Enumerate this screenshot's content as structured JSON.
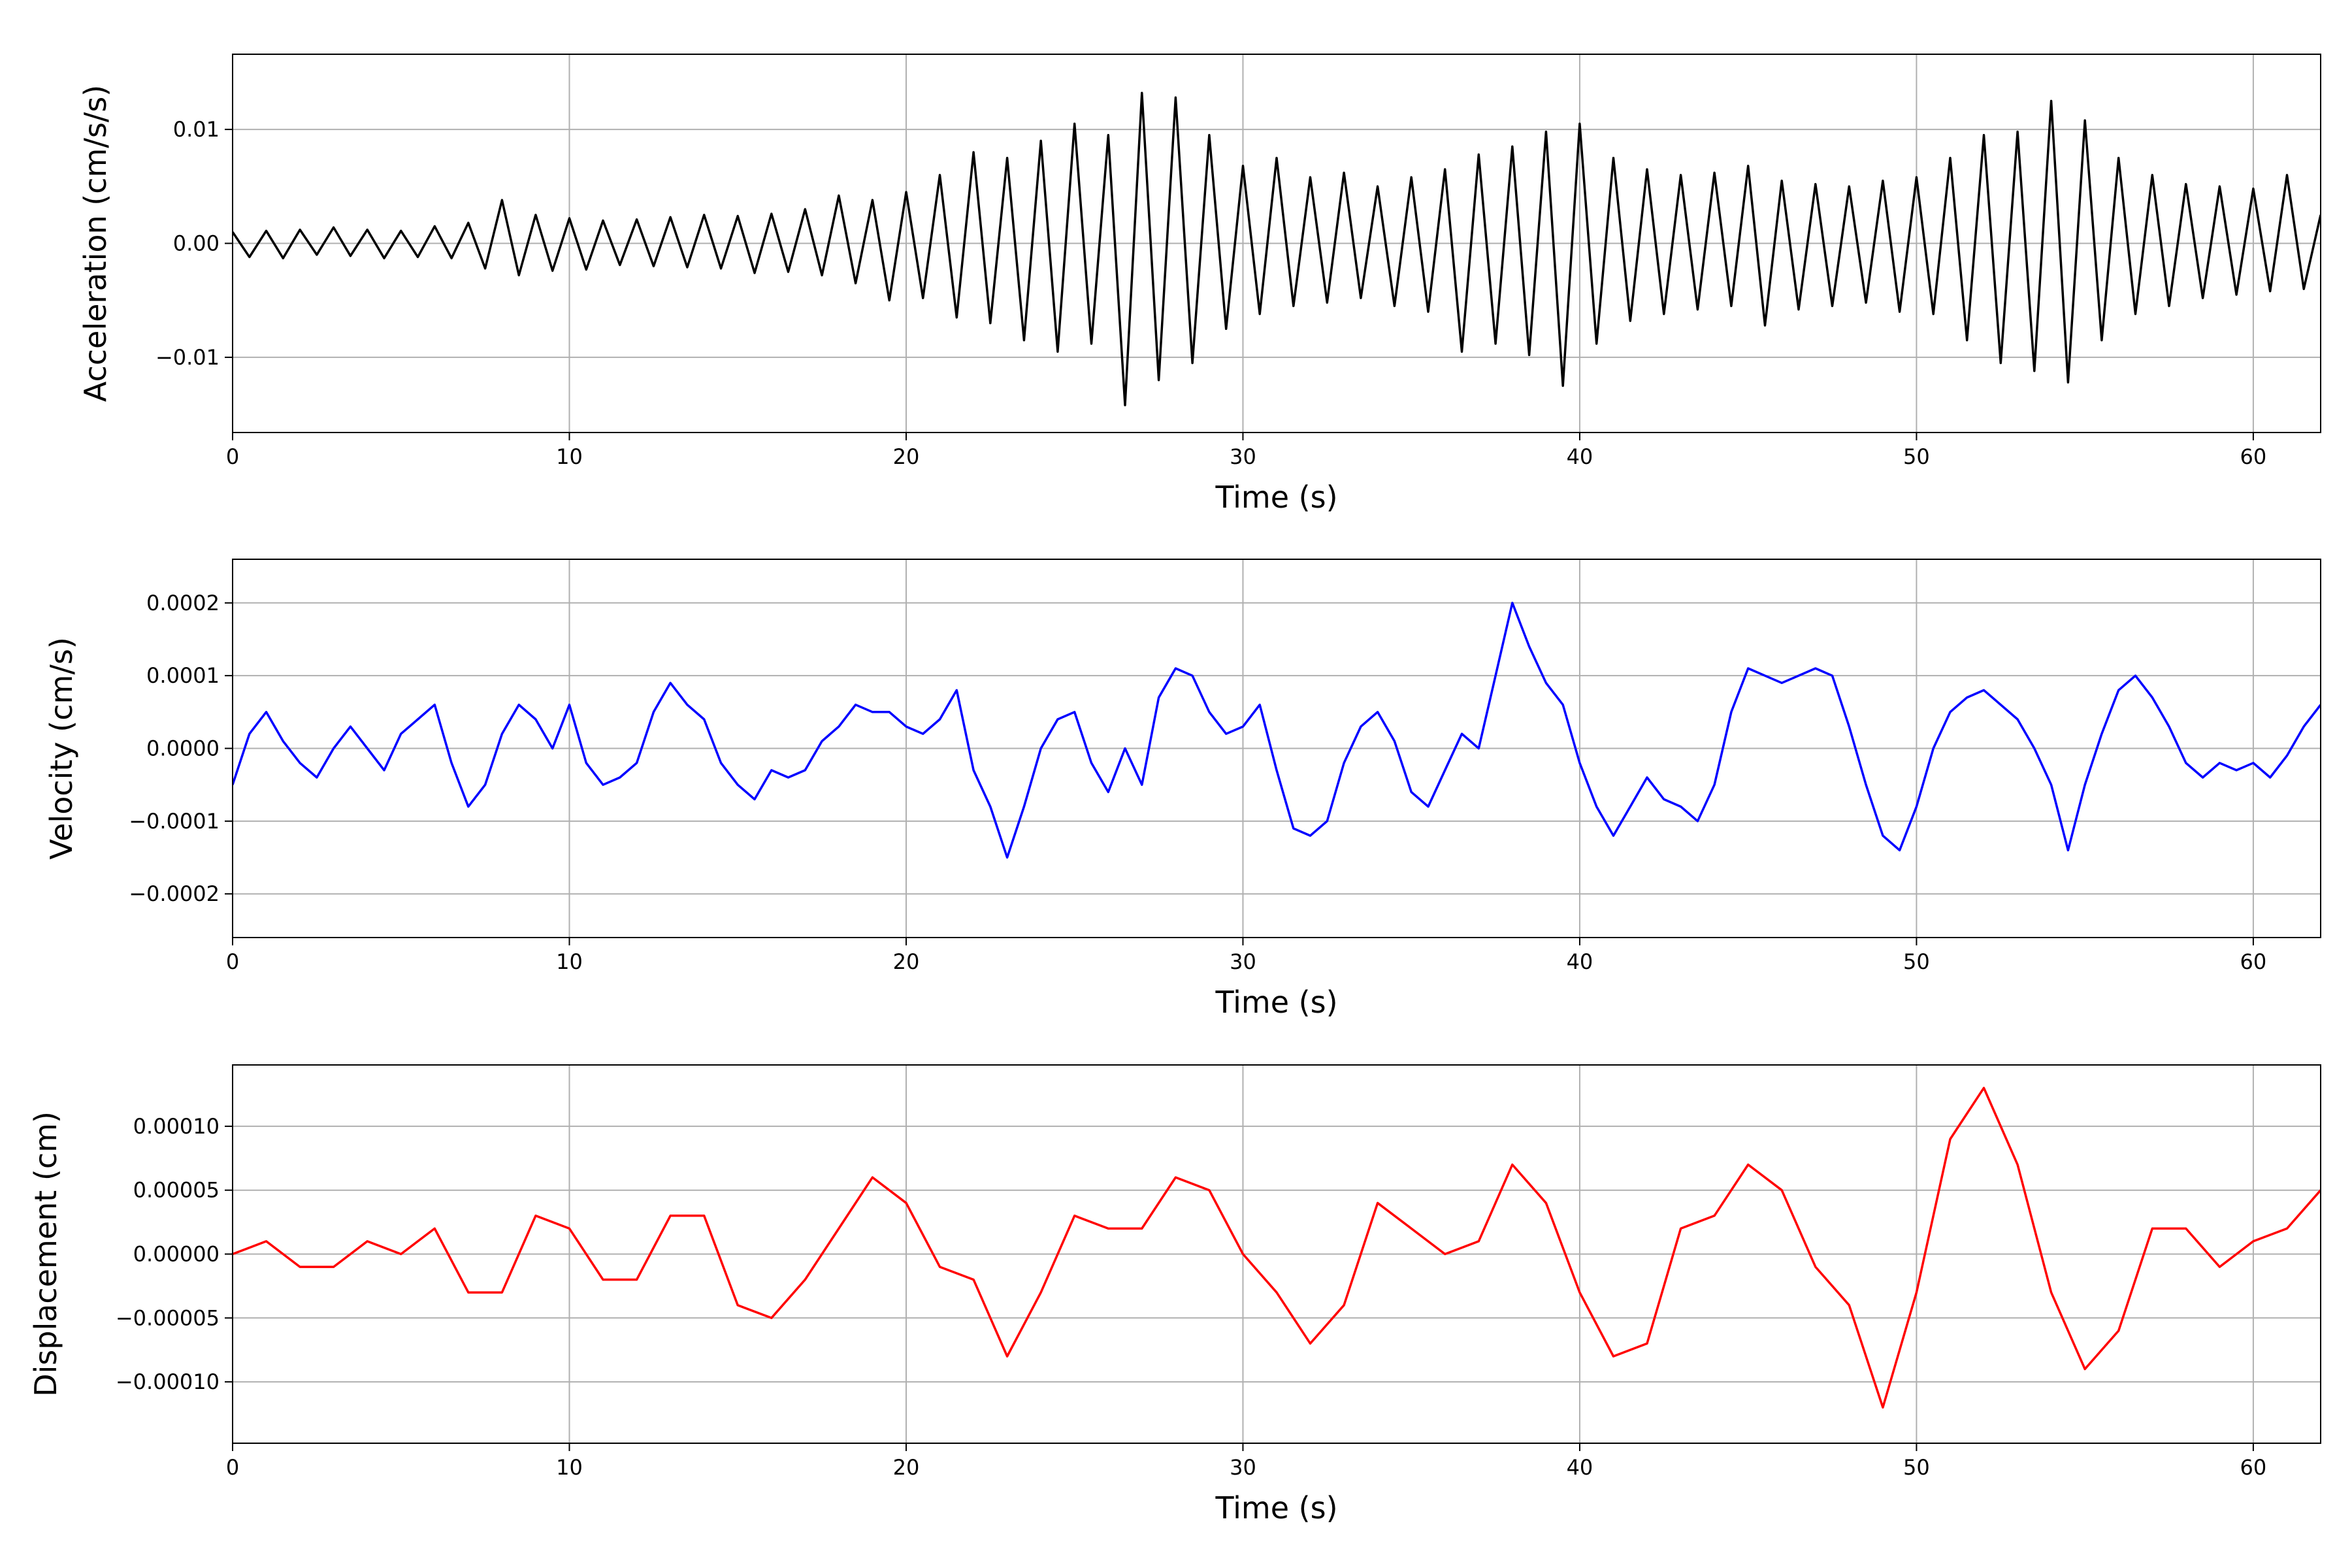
{
  "chart_data": [
    {
      "type": "line",
      "xlabel": "Time (s)",
      "ylabel": "Acceleration (cm/s/s)",
      "color": "#000000",
      "grid": true,
      "xlim": [
        0,
        62
      ],
      "xticks": [
        0,
        10,
        20,
        30,
        40,
        50,
        60
      ],
      "ylim": [
        -0.0166,
        0.0166
      ],
      "yticks": [
        {
          "value": -0.01,
          "label": "−0.01"
        },
        {
          "value": 0,
          "label": "0.00"
        },
        0.01
      ],
      "x": [
        0,
        0.5,
        1,
        1.5,
        2,
        2.5,
        3,
        3.5,
        4,
        4.5,
        5,
        5.5,
        6,
        6.5,
        7,
        7.5,
        8,
        8.5,
        9,
        9.5,
        10,
        10.5,
        11,
        11.5,
        12,
        12.5,
        13,
        13.5,
        14,
        14.5,
        15,
        15.5,
        16,
        16.5,
        17,
        17.5,
        18,
        18.5,
        19,
        19.5,
        20,
        20.5,
        21,
        21.5,
        22,
        22.5,
        23,
        23.5,
        24,
        24.5,
        25,
        25.5,
        26,
        26.5,
        27,
        27.5,
        28,
        28.5,
        29,
        29.5,
        30,
        30.5,
        31,
        31.5,
        32,
        32.5,
        33,
        33.5,
        34,
        34.5,
        35,
        35.5,
        36,
        36.5,
        37,
        37.5,
        38,
        38.5,
        39,
        39.5,
        40,
        40.5,
        41,
        41.5,
        42,
        42.5,
        43,
        43.5,
        44,
        44.5,
        45,
        45.5,
        46,
        46.5,
        47,
        47.5,
        48,
        48.5,
        49,
        49.5,
        50,
        50.5,
        51,
        51.5,
        52,
        52.5,
        53,
        53.5,
        54,
        54.5,
        55,
        55.5,
        56,
        56.5,
        57,
        57.5,
        58,
        58.5,
        59,
        59.5,
        60,
        60.5,
        61,
        61.5,
        62
      ],
      "values": [
        0.001,
        -0.0012,
        0.0011,
        -0.0013,
        0.0012,
        -0.001,
        0.0014,
        -0.0011,
        0.0012,
        -0.0013,
        0.0011,
        -0.0012,
        0.0015,
        -0.0013,
        0.0018,
        -0.0022,
        0.0038,
        -0.0028,
        0.0025,
        -0.0024,
        0.0022,
        -0.0023,
        0.002,
        -0.0019,
        0.0021,
        -0.002,
        0.0023,
        -0.0021,
        0.0025,
        -0.0022,
        0.0024,
        -0.0026,
        0.0026,
        -0.0025,
        0.003,
        -0.0028,
        0.0042,
        -0.0035,
        0.0038,
        -0.005,
        0.0045,
        -0.0048,
        0.006,
        -0.0065,
        0.008,
        -0.007,
        0.0075,
        -0.0085,
        0.009,
        -0.0095,
        0.0105,
        -0.0088,
        0.0095,
        -0.0142,
        0.0132,
        -0.012,
        0.0128,
        -0.0105,
        0.0095,
        -0.0075,
        0.0068,
        -0.0062,
        0.0075,
        -0.0055,
        0.0058,
        -0.0052,
        0.0062,
        -0.0048,
        0.005,
        -0.0055,
        0.0058,
        -0.006,
        0.0065,
        -0.0095,
        0.0078,
        -0.0088,
        0.0085,
        -0.0098,
        0.0098,
        -0.0125,
        0.0105,
        -0.0088,
        0.0075,
        -0.0068,
        0.0065,
        -0.0062,
        0.006,
        -0.0058,
        0.0062,
        -0.0055,
        0.0068,
        -0.0072,
        0.0055,
        -0.0058,
        0.0052,
        -0.0055,
        0.005,
        -0.0052,
        0.0055,
        -0.006,
        0.0058,
        -0.0062,
        0.0075,
        -0.0085,
        0.0095,
        -0.0105,
        0.0098,
        -0.0112,
        0.0125,
        -0.0122,
        0.0108,
        -0.0085,
        0.0075,
        -0.0062,
        0.006,
        -0.0055,
        0.0052,
        -0.0048,
        0.005,
        -0.0045,
        0.0048,
        -0.0042,
        0.006,
        -0.004,
        0.0025
      ]
    },
    {
      "type": "line",
      "xlabel": "Time (s)",
      "ylabel": "Velocity (cm/s)",
      "color": "#0000ff",
      "grid": true,
      "xlim": [
        0,
        62
      ],
      "xticks": [
        0,
        10,
        20,
        30,
        40,
        50,
        60
      ],
      "ylim": [
        -0.00026,
        0.00026
      ],
      "yticks": [
        {
          "value": -0.0002,
          "label": "−0.0002"
        },
        {
          "value": -0.0001,
          "label": "−0.0001"
        },
        {
          "value": 0,
          "label": "0.0000"
        },
        0.0001,
        0.0002
      ],
      "x": [
        0,
        0.5,
        1,
        1.5,
        2,
        2.5,
        3,
        3.5,
        4,
        4.5,
        5,
        5.5,
        6,
        6.5,
        7,
        7.5,
        8,
        8.5,
        9,
        9.5,
        10,
        10.5,
        11,
        11.5,
        12,
        12.5,
        13,
        13.5,
        14,
        14.5,
        15,
        15.5,
        16,
        16.5,
        17,
        17.5,
        18,
        18.5,
        19,
        19.5,
        20,
        20.5,
        21,
        21.5,
        22,
        22.5,
        23,
        23.5,
        24,
        24.5,
        25,
        25.5,
        26,
        26.5,
        27,
        27.5,
        28,
        28.5,
        29,
        29.5,
        30,
        30.5,
        31,
        31.5,
        32,
        32.5,
        33,
        33.5,
        34,
        34.5,
        35,
        35.5,
        36,
        36.5,
        37,
        37.5,
        38,
        38.5,
        39,
        39.5,
        40,
        40.5,
        41,
        41.5,
        42,
        42.5,
        43,
        43.5,
        44,
        44.5,
        45,
        45.5,
        46,
        46.5,
        47,
        47.5,
        48,
        48.5,
        49,
        49.5,
        50,
        50.5,
        51,
        51.5,
        52,
        52.5,
        53,
        53.5,
        54,
        54.5,
        55,
        55.5,
        56,
        56.5,
        57,
        57.5,
        58,
        58.5,
        59,
        59.5,
        60,
        60.5,
        61,
        61.5,
        62
      ],
      "values": [
        -5e-05,
        2e-05,
        5e-05,
        1e-05,
        -2e-05,
        -4e-05,
        0,
        3e-05,
        0,
        -3e-05,
        2e-05,
        4e-05,
        6e-05,
        -2e-05,
        -8e-05,
        -5e-05,
        2e-05,
        6e-05,
        4e-05,
        0,
        6e-05,
        -2e-05,
        -5e-05,
        -4e-05,
        -2e-05,
        5e-05,
        9e-05,
        6e-05,
        4e-05,
        -2e-05,
        -5e-05,
        -7e-05,
        -3e-05,
        -4e-05,
        -3e-05,
        1e-05,
        3e-05,
        6e-05,
        5e-05,
        5e-05,
        3e-05,
        2e-05,
        4e-05,
        8e-05,
        -3e-05,
        -8e-05,
        -0.00015,
        -8e-05,
        0,
        4e-05,
        5e-05,
        -2e-05,
        -6e-05,
        0,
        -5e-05,
        7e-05,
        0.00011,
        0.0001,
        5e-05,
        2e-05,
        3e-05,
        6e-05,
        -3e-05,
        -0.00011,
        -0.00012,
        -0.0001,
        -2e-05,
        3e-05,
        5e-05,
        1e-05,
        -6e-05,
        -8e-05,
        -3e-05,
        2e-05,
        0,
        0.0001,
        0.0002,
        0.00014,
        9e-05,
        6e-05,
        -2e-05,
        -8e-05,
        -0.00012,
        -8e-05,
        -4e-05,
        -7e-05,
        -8e-05,
        -0.0001,
        -5e-05,
        5e-05,
        0.00011,
        0.0001,
        9e-05,
        0.0001,
        0.00011,
        0.0001,
        3e-05,
        -5e-05,
        -0.00012,
        -0.00014,
        -8e-05,
        0,
        5e-05,
        7e-05,
        8e-05,
        6e-05,
        4e-05,
        0,
        -5e-05,
        -0.00014,
        -5e-05,
        2e-05,
        8e-05,
        0.0001,
        7e-05,
        3e-05,
        -2e-05,
        -4e-05,
        -2e-05,
        -3e-05,
        -2e-05,
        -4e-05,
        -1e-05,
        3e-05,
        6e-05
      ]
    },
    {
      "type": "line",
      "xlabel": "Time (s)",
      "ylabel": "Displacement (cm)",
      "color": "#ff0000",
      "grid": true,
      "xlim": [
        0,
        62
      ],
      "xticks": [
        0,
        10,
        20,
        30,
        40,
        50,
        60
      ],
      "ylim": [
        -0.000148,
        0.000148
      ],
      "yticks": [
        {
          "value": -0.0001,
          "label": "−0.00010"
        },
        {
          "value": -5e-05,
          "label": "−0.00005"
        },
        {
          "value": 0,
          "label": "0.00000"
        },
        {
          "value": 5e-05,
          "label": "0.00005"
        },
        {
          "value": 0.0001,
          "label": "0.00010"
        }
      ],
      "x": [
        0,
        1,
        2,
        3,
        4,
        5,
        6,
        7,
        8,
        9,
        10,
        11,
        12,
        13,
        14,
        15,
        16,
        17,
        18,
        19,
        20,
        21,
        22,
        23,
        24,
        25,
        26,
        27,
        28,
        29,
        30,
        31,
        32,
        33,
        34,
        35,
        36,
        37,
        38,
        39,
        40,
        41,
        42,
        43,
        44,
        45,
        46,
        47,
        48,
        49,
        50,
        51,
        52,
        53,
        54,
        55,
        56,
        57,
        58,
        59,
        60,
        61,
        62
      ],
      "values": [
        0,
        1e-05,
        -1e-05,
        -1e-05,
        1e-05,
        0,
        2e-05,
        -3e-05,
        -3e-05,
        3e-05,
        2e-05,
        -2e-05,
        -2e-05,
        3e-05,
        3e-05,
        -4e-05,
        -5e-05,
        -2e-05,
        2e-05,
        6e-05,
        4e-05,
        -1e-05,
        -2e-05,
        -8e-05,
        -3e-05,
        3e-05,
        2e-05,
        2e-05,
        6e-05,
        5e-05,
        0,
        -3e-05,
        -7e-05,
        -4e-05,
        4e-05,
        2e-05,
        0,
        1e-05,
        7e-05,
        4e-05,
        -3e-05,
        -8e-05,
        -7e-05,
        2e-05,
        3e-05,
        7e-05,
        5e-05,
        -1e-05,
        -4e-05,
        -0.00012,
        -3e-05,
        9e-05,
        0.00013,
        7e-05,
        -3e-05,
        -9e-05,
        -6e-05,
        2e-05,
        2e-05,
        -1e-05,
        1e-05,
        2e-05,
        5e-05
      ]
    }
  ]
}
